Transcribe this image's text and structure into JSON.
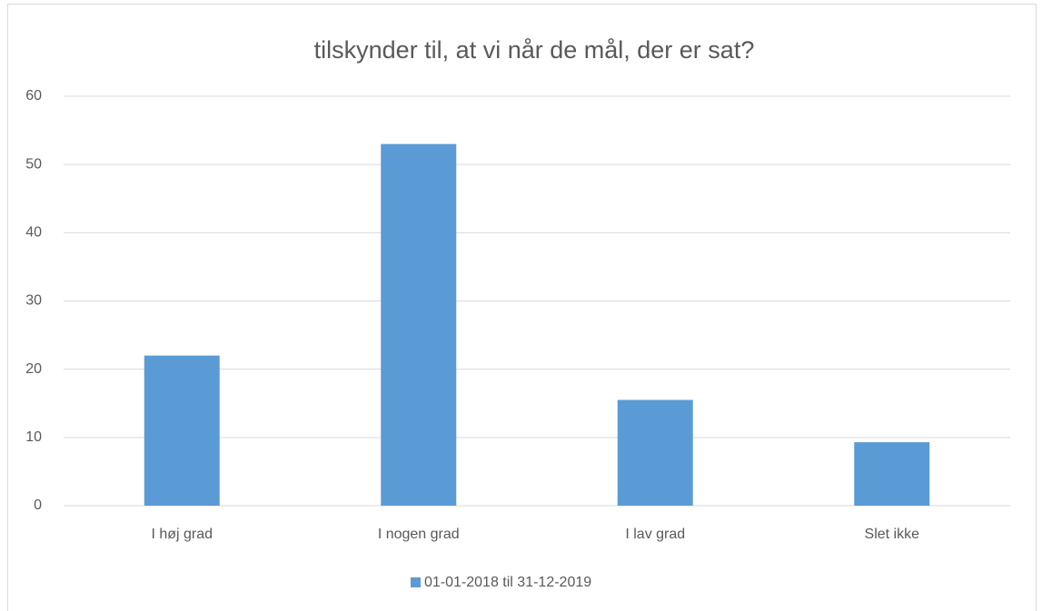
{
  "chart_data": {
    "type": "bar",
    "title": "tilskynder til, at vi når de mål, der er sat?",
    "categories": [
      "I høj grad",
      "I nogen grad",
      "I lav grad",
      "Slet ikke"
    ],
    "series": [
      {
        "name": "01-01-2018 til 31-12-2019",
        "color": "#5b9bd5",
        "values": [
          22,
          53,
          15.5,
          9.3
        ]
      }
    ],
    "ylim": [
      0,
      60
    ],
    "yticks": [
      0,
      10,
      20,
      30,
      40,
      50,
      60
    ],
    "grid": true,
    "legend": "bottom"
  }
}
